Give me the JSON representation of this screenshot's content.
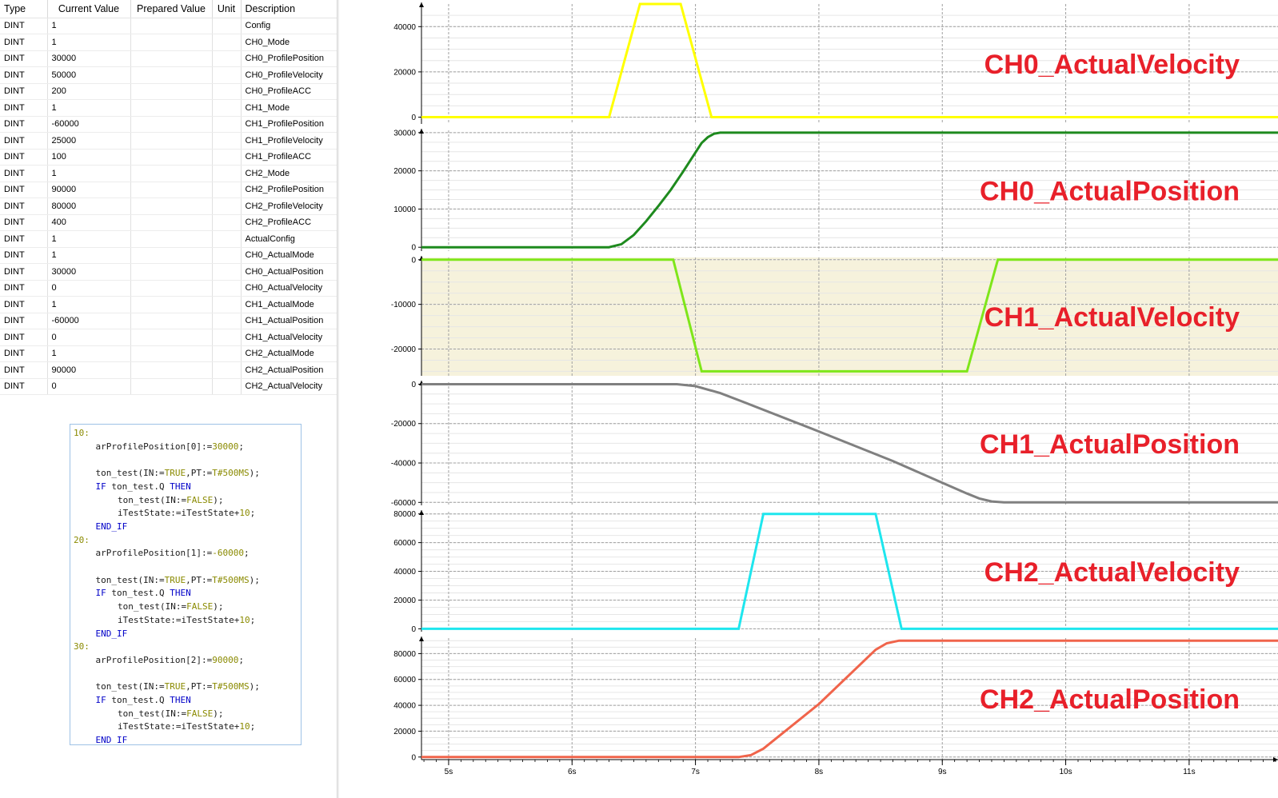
{
  "watch_table": {
    "headers": [
      "Type",
      "Current Value",
      "Prepared Value",
      "Unit",
      "Description"
    ],
    "rows": [
      {
        "type": "DINT",
        "current": "1",
        "prepared": "",
        "unit": "",
        "description": "Config"
      },
      {
        "type": "DINT",
        "current": "1",
        "prepared": "",
        "unit": "",
        "description": "CH0_Mode"
      },
      {
        "type": "DINT",
        "current": "30000",
        "prepared": "",
        "unit": "",
        "description": "CH0_ProfilePosition"
      },
      {
        "type": "DINT",
        "current": "50000",
        "prepared": "",
        "unit": "",
        "description": "CH0_ProfileVelocity"
      },
      {
        "type": "DINT",
        "current": "200",
        "prepared": "",
        "unit": "",
        "description": "CH0_ProfileACC"
      },
      {
        "type": "DINT",
        "current": "1",
        "prepared": "",
        "unit": "",
        "description": "CH1_Mode"
      },
      {
        "type": "DINT",
        "current": "-60000",
        "prepared": "",
        "unit": "",
        "description": "CH1_ProfilePosition"
      },
      {
        "type": "DINT",
        "current": "25000",
        "prepared": "",
        "unit": "",
        "description": "CH1_ProfileVelocity"
      },
      {
        "type": "DINT",
        "current": "100",
        "prepared": "",
        "unit": "",
        "description": "CH1_ProfileACC"
      },
      {
        "type": "DINT",
        "current": "1",
        "prepared": "",
        "unit": "",
        "description": "CH2_Mode"
      },
      {
        "type": "DINT",
        "current": "90000",
        "prepared": "",
        "unit": "",
        "description": "CH2_ProfilePosition"
      },
      {
        "type": "DINT",
        "current": "80000",
        "prepared": "",
        "unit": "",
        "description": "CH2_ProfileVelocity"
      },
      {
        "type": "DINT",
        "current": "400",
        "prepared": "",
        "unit": "",
        "description": "CH2_ProfileACC"
      },
      {
        "type": "DINT",
        "current": "1",
        "prepared": "",
        "unit": "",
        "description": "ActualConfig"
      },
      {
        "type": "DINT",
        "current": "1",
        "prepared": "",
        "unit": "",
        "description": "CH0_ActualMode"
      },
      {
        "type": "DINT",
        "current": "30000",
        "prepared": "",
        "unit": "",
        "description": "CH0_ActualPosition"
      },
      {
        "type": "DINT",
        "current": "0",
        "prepared": "",
        "unit": "",
        "description": "CH0_ActualVelocity"
      },
      {
        "type": "DINT",
        "current": "1",
        "prepared": "",
        "unit": "",
        "description": "CH1_ActualMode"
      },
      {
        "type": "DINT",
        "current": "-60000",
        "prepared": "",
        "unit": "",
        "description": "CH1_ActualPosition"
      },
      {
        "type": "DINT",
        "current": "0",
        "prepared": "",
        "unit": "",
        "description": "CH1_ActualVelocity"
      },
      {
        "type": "DINT",
        "current": "1",
        "prepared": "",
        "unit": "",
        "description": "CH2_ActualMode"
      },
      {
        "type": "DINT",
        "current": "90000",
        "prepared": "",
        "unit": "",
        "description": "CH2_ActualPosition"
      },
      {
        "type": "DINT",
        "current": "0",
        "prepared": "",
        "unit": "",
        "description": "CH2_ActualVelocity"
      }
    ]
  },
  "code": {
    "lines": [
      {
        "indent": 0,
        "tokens": [
          {
            "t": "10:",
            "c": "label"
          }
        ]
      },
      {
        "indent": 1,
        "tokens": [
          {
            "t": "arProfilePosition[0]:=",
            "c": "plain"
          },
          {
            "t": "30000",
            "c": "num"
          },
          {
            "t": ";",
            "c": "plain"
          }
        ]
      },
      {
        "indent": 0,
        "tokens": []
      },
      {
        "indent": 1,
        "tokens": [
          {
            "t": "ton_test(IN:=",
            "c": "plain"
          },
          {
            "t": "TRUE",
            "c": "const"
          },
          {
            "t": ",PT:=",
            "c": "plain"
          },
          {
            "t": "T#500MS",
            "c": "const"
          },
          {
            "t": ");",
            "c": "plain"
          }
        ]
      },
      {
        "indent": 1,
        "tokens": [
          {
            "t": "IF",
            "c": "kw"
          },
          {
            "t": " ton_test.Q ",
            "c": "plain"
          },
          {
            "t": "THEN",
            "c": "kw"
          }
        ]
      },
      {
        "indent": 2,
        "tokens": [
          {
            "t": "ton_test(IN:=",
            "c": "plain"
          },
          {
            "t": "FALSE",
            "c": "const"
          },
          {
            "t": ");",
            "c": "plain"
          }
        ]
      },
      {
        "indent": 2,
        "tokens": [
          {
            "t": "iTestState:=iTestState+",
            "c": "plain"
          },
          {
            "t": "10",
            "c": "num"
          },
          {
            "t": ";",
            "c": "plain"
          }
        ]
      },
      {
        "indent": 1,
        "tokens": [
          {
            "t": "END_IF",
            "c": "kw"
          }
        ]
      },
      {
        "indent": 0,
        "tokens": [
          {
            "t": "20:",
            "c": "label"
          }
        ]
      },
      {
        "indent": 1,
        "tokens": [
          {
            "t": "arProfilePosition[1]:=",
            "c": "plain"
          },
          {
            "t": "-60000",
            "c": "num"
          },
          {
            "t": ";",
            "c": "plain"
          }
        ]
      },
      {
        "indent": 0,
        "tokens": []
      },
      {
        "indent": 1,
        "tokens": [
          {
            "t": "ton_test(IN:=",
            "c": "plain"
          },
          {
            "t": "TRUE",
            "c": "const"
          },
          {
            "t": ",PT:=",
            "c": "plain"
          },
          {
            "t": "T#500MS",
            "c": "const"
          },
          {
            "t": ");",
            "c": "plain"
          }
        ]
      },
      {
        "indent": 1,
        "tokens": [
          {
            "t": "IF",
            "c": "kw"
          },
          {
            "t": " ton_test.Q ",
            "c": "plain"
          },
          {
            "t": "THEN",
            "c": "kw"
          }
        ]
      },
      {
        "indent": 2,
        "tokens": [
          {
            "t": "ton_test(IN:=",
            "c": "plain"
          },
          {
            "t": "FALSE",
            "c": "const"
          },
          {
            "t": ");",
            "c": "plain"
          }
        ]
      },
      {
        "indent": 2,
        "tokens": [
          {
            "t": "iTestState:=iTestState+",
            "c": "plain"
          },
          {
            "t": "10",
            "c": "num"
          },
          {
            "t": ";",
            "c": "plain"
          }
        ]
      },
      {
        "indent": 1,
        "tokens": [
          {
            "t": "END_IF",
            "c": "kw"
          }
        ]
      },
      {
        "indent": 0,
        "tokens": [
          {
            "t": "30:",
            "c": "label"
          }
        ]
      },
      {
        "indent": 1,
        "tokens": [
          {
            "t": "arProfilePosition[2]:=",
            "c": "plain"
          },
          {
            "t": "90000",
            "c": "num"
          },
          {
            "t": ";",
            "c": "plain"
          }
        ]
      },
      {
        "indent": 0,
        "tokens": []
      },
      {
        "indent": 1,
        "tokens": [
          {
            "t": "ton_test(IN:=",
            "c": "plain"
          },
          {
            "t": "TRUE",
            "c": "const"
          },
          {
            "t": ",PT:=",
            "c": "plain"
          },
          {
            "t": "T#500MS",
            "c": "const"
          },
          {
            "t": ");",
            "c": "plain"
          }
        ]
      },
      {
        "indent": 1,
        "tokens": [
          {
            "t": "IF",
            "c": "kw"
          },
          {
            "t": " ton_test.Q ",
            "c": "plain"
          },
          {
            "t": "THEN",
            "c": "kw"
          }
        ]
      },
      {
        "indent": 2,
        "tokens": [
          {
            "t": "ton_test(IN:=",
            "c": "plain"
          },
          {
            "t": "FALSE",
            "c": "const"
          },
          {
            "t": ");",
            "c": "plain"
          }
        ]
      },
      {
        "indent": 2,
        "tokens": [
          {
            "t": "iTestState:=iTestState+",
            "c": "plain"
          },
          {
            "t": "10",
            "c": "num"
          },
          {
            "t": ";",
            "c": "plain"
          }
        ]
      },
      {
        "indent": 1,
        "tokens": [
          {
            "t": "END_IF",
            "c": "kw"
          }
        ]
      }
    ],
    "colors": {
      "plain": "#1c1c1c",
      "label": "#8a8a00",
      "num": "#8a8a00",
      "const": "#8a8a00",
      "kw": "#0000c8"
    }
  },
  "chart_data": {
    "type": "line",
    "x_unit": "s",
    "xlim": [
      4.78,
      11.72
    ],
    "x_ticks": [
      5,
      6,
      7,
      8,
      9,
      10,
      11
    ],
    "x_tick_labels": [
      "5s",
      "6s",
      "7s",
      "8s",
      "9s",
      "10s",
      "11s"
    ],
    "panels": [
      {
        "label": "CH0_ActualVelocity",
        "color": "#ffff00",
        "background": "#ffffff",
        "ylim": [
          -3000,
          50000
        ],
        "y_ticks": [
          0,
          20000,
          40000
        ],
        "y_tick_labels": [
          "0",
          "20000",
          "40000"
        ],
        "points": [
          [
            4.78,
            0
          ],
          [
            6.3,
            0
          ],
          [
            6.55,
            50000
          ],
          [
            6.88,
            50000
          ],
          [
            7.13,
            0
          ],
          [
            11.72,
            0
          ]
        ]
      },
      {
        "label": "CH0_ActualPosition",
        "color": "#1e8a1e",
        "background": "#ffffff",
        "ylim": [
          -1000,
          30600
        ],
        "y_ticks": [
          0,
          10000,
          20000,
          30000
        ],
        "y_tick_labels": [
          "0",
          "10000",
          "20000",
          "30000"
        ],
        "points": [
          [
            4.78,
            0
          ],
          [
            6.3,
            0
          ],
          [
            6.4,
            800
          ],
          [
            6.5,
            3200
          ],
          [
            6.6,
            6800
          ],
          [
            6.7,
            10800
          ],
          [
            6.8,
            15000
          ],
          [
            6.9,
            19800
          ],
          [
            7.0,
            24800
          ],
          [
            7.05,
            27300
          ],
          [
            7.1,
            28800
          ],
          [
            7.15,
            29700
          ],
          [
            7.2,
            30000
          ],
          [
            11.72,
            30000
          ]
        ]
      },
      {
        "label": "CH1_ActualVelocity",
        "color": "#7fe61a",
        "background": "#f6f2dc",
        "ylim": [
          -26000,
          500
        ],
        "y_ticks": [
          0,
          -10000,
          -20000
        ],
        "y_tick_labels": [
          "0",
          "-10000",
          "-20000"
        ],
        "points": [
          [
            4.78,
            0
          ],
          [
            6.82,
            0
          ],
          [
            7.05,
            -25000
          ],
          [
            9.2,
            -25000
          ],
          [
            9.45,
            0
          ],
          [
            11.72,
            0
          ]
        ]
      },
      {
        "label": "CH1_ActualPosition",
        "color": "#808080",
        "background": "#ffffff",
        "ylim": [
          -61500,
          1000
        ],
        "y_ticks": [
          0,
          -20000,
          -40000,
          -60000
        ],
        "y_tick_labels": [
          "0",
          "-20000",
          "-40000",
          "-60000"
        ],
        "points": [
          [
            4.78,
            0
          ],
          [
            6.85,
            0
          ],
          [
            7.0,
            -1000
          ],
          [
            7.2,
            -4500
          ],
          [
            7.4,
            -9300
          ],
          [
            8.0,
            -24000
          ],
          [
            8.6,
            -39000
          ],
          [
            9.0,
            -50000
          ],
          [
            9.2,
            -55500
          ],
          [
            9.3,
            -58000
          ],
          [
            9.4,
            -59500
          ],
          [
            9.5,
            -60000
          ],
          [
            11.72,
            -60000
          ]
        ]
      },
      {
        "label": "CH2_ActualVelocity",
        "color": "#1ee6ee",
        "background": "#ffffff",
        "ylim": [
          -2000,
          81500
        ],
        "y_ticks": [
          0,
          20000,
          40000,
          60000,
          80000
        ],
        "y_tick_labels": [
          "0",
          "20000",
          "40000",
          "60000",
          "80000"
        ],
        "points": [
          [
            4.78,
            0
          ],
          [
            7.35,
            0
          ],
          [
            7.55,
            80000
          ],
          [
            8.46,
            80000
          ],
          [
            8.67,
            0
          ],
          [
            11.72,
            0
          ]
        ]
      },
      {
        "label": "CH2_ActualPosition",
        "color": "#f0644b",
        "background": "#ffffff",
        "ylim": [
          -2000,
          92000
        ],
        "y_ticks": [
          0,
          20000,
          40000,
          60000,
          80000
        ],
        "y_tick_labels": [
          "0",
          "20000",
          "40000",
          "60000",
          "80000"
        ],
        "points": [
          [
            4.78,
            0
          ],
          [
            7.35,
            0
          ],
          [
            7.45,
            1500
          ],
          [
            7.55,
            6500
          ],
          [
            8.0,
            41000
          ],
          [
            8.46,
            83000
          ],
          [
            8.55,
            88000
          ],
          [
            8.65,
            90000
          ],
          [
            11.72,
            90000
          ]
        ]
      }
    ]
  }
}
